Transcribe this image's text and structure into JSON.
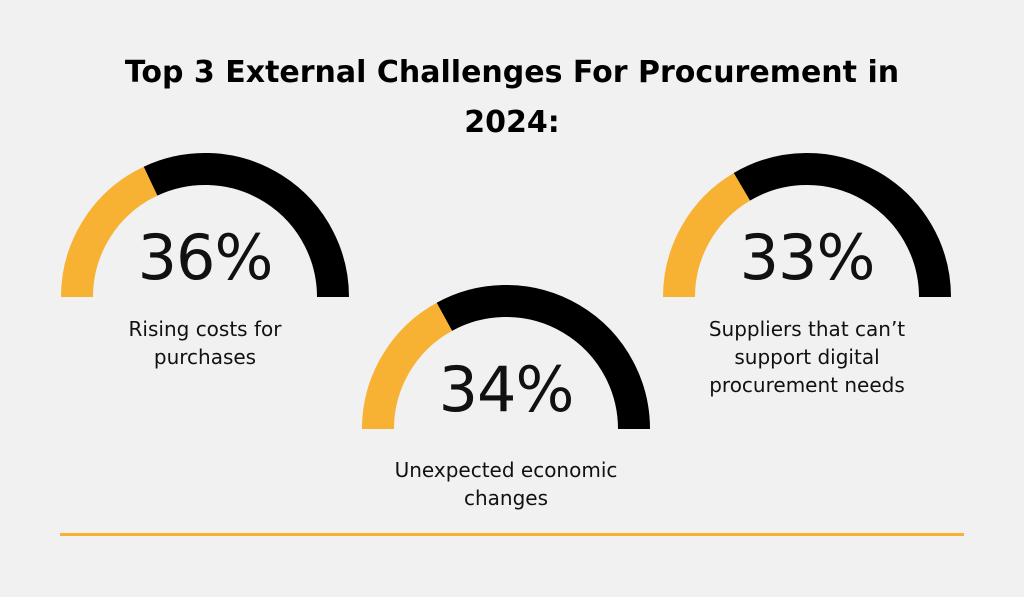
{
  "title_lines": [
    "Top 3 External Challenges For Procurement in",
    "2024:"
  ],
  "colors": {
    "accent": "#f7b233",
    "track": "#000000",
    "background": "#f1f1f1",
    "text": "#111111"
  },
  "chart_data": {
    "type": "gauge",
    "title": "Top 3 External Challenges For Procurement in 2024:",
    "items": [
      {
        "value": 36,
        "label": "36%",
        "caption_lines": [
          "Rising costs for",
          "purchases"
        ]
      },
      {
        "value": 34,
        "label": "34%",
        "caption_lines": [
          "Unexpected economic",
          "changes"
        ]
      },
      {
        "value": 33,
        "label": "33%",
        "caption_lines": [
          "Suppliers that can’t",
          "support digital",
          "procurement needs"
        ]
      }
    ]
  }
}
